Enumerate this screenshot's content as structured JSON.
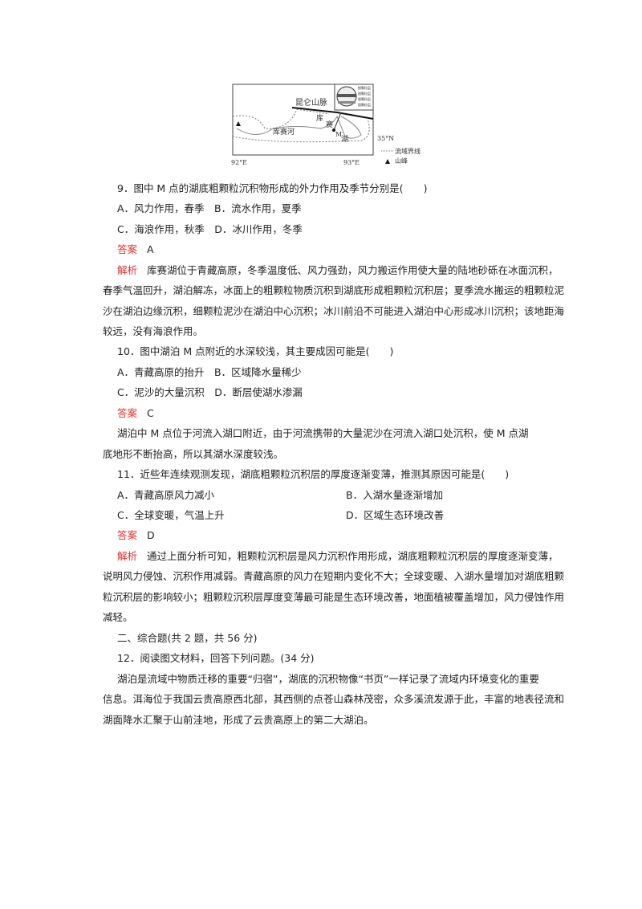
{
  "map": {
    "mountain_range": "昆仑山脉",
    "river": "库赛河",
    "lake_top": "库",
    "lake_mid": "赛",
    "point": "M",
    "lake": "湖",
    "lat": "35°N",
    "lon1": "92°E",
    "lon2": "93°E",
    "legend_boundary": "流域界线",
    "legend_peak": "山峰",
    "inset_labels": [
      "细颗粒层",
      "粗颗粒层",
      "细颗粒层",
      "粗颗粒层"
    ]
  },
  "q9": {
    "stem": "9．图中 M 点的湖底粗颗粒沉积物形成的外力作用及季节分别是(　　)",
    "opt1": "A．风力作用，春季　B．流水作用，夏季",
    "opt2": "C．海浪作用，秋季　D．冰川作用，冬季",
    "answer_label": "答案",
    "answer": "A",
    "analysis_label": "解析",
    "analysis": [
      "库赛湖位于青藏高原，冬季温度低、风力强劲，风力搬运作用使大量的陆地砂砾在冰面沉积，",
      "春季气温回升，湖泊解冻，冰面上的粗颗粒物质沉积到湖底形成粗颗粒沉积层；夏季流水搬运的粗颗粒泥",
      "沙在湖泊边缘沉积，细颗粒泥沙在湖泊中心沉积；冰川前沿不可能进入湖泊中心形成冰川沉积；该地距海",
      "较远，没有海浪作用。"
    ]
  },
  "q10": {
    "stem": "10．图中湖泊 M 点附近的水深较浅，其主要成因可能是(　　)",
    "opt1": "A．青藏高原的抬升　B．区域降水量稀少",
    "opt2": "C．泥沙的大量沉积　D．断层使湖水渗漏",
    "answer_label": "答案",
    "answer": "C",
    "analysis": [
      "湖泊中 M 点位于河流入湖口附近，由于河流携带的大量泥沙在河流入湖口处沉积，使 M 点湖",
      "底地形不断抬高，所以其湖水深度较浅。"
    ]
  },
  "q11": {
    "stem": "11．近些年连续观测发现，湖底粗颗粒沉积层的厚度逐渐变薄，推测其原因可能是(　　)",
    "optA": "A．青藏高原风力减小",
    "optB": "B．入湖水量逐渐增加",
    "optC": "C．全球变暖，气温上升",
    "optD": "D．区域生态环境改善",
    "answer_label": "答案",
    "answer": "D",
    "analysis_label": "解析",
    "analysis": [
      "通过上面分析可知，粗颗粒沉积层是风力沉积作用形成，湖底粗颗粒沉积层的厚度逐渐变薄，",
      "说明风力侵蚀、沉积作用减弱。青藏高原的风力在短期内变化不大；全球变暖、入湖水量增加对湖底粗颗",
      "粒沉积层的影响较小；粗颗粒沉积层厚度变薄最可能是生态环境改善，地面植被覆盖增加，风力侵蚀作用",
      "减轻。"
    ]
  },
  "section2": "二、综合题(共 2 题，共 56 分)",
  "q12": {
    "stem": "12．阅读图文材料，回答下列问题。(34 分)",
    "material": [
      "湖泊是流域中物质迁移的重要“归宿”，湖底的沉积物像“书页”一样记录了流域内环境变化的重要",
      "信息。洱海位于我国云贵高原西北部，其西侧的点苍山森林茂密，众多溪流发源于此，丰富的地表径流和",
      "湖面降水汇聚于山前洼地，形成了云贵高原上的第二大湖泊。"
    ]
  },
  "colors": {
    "label_red": "#e03030"
  }
}
